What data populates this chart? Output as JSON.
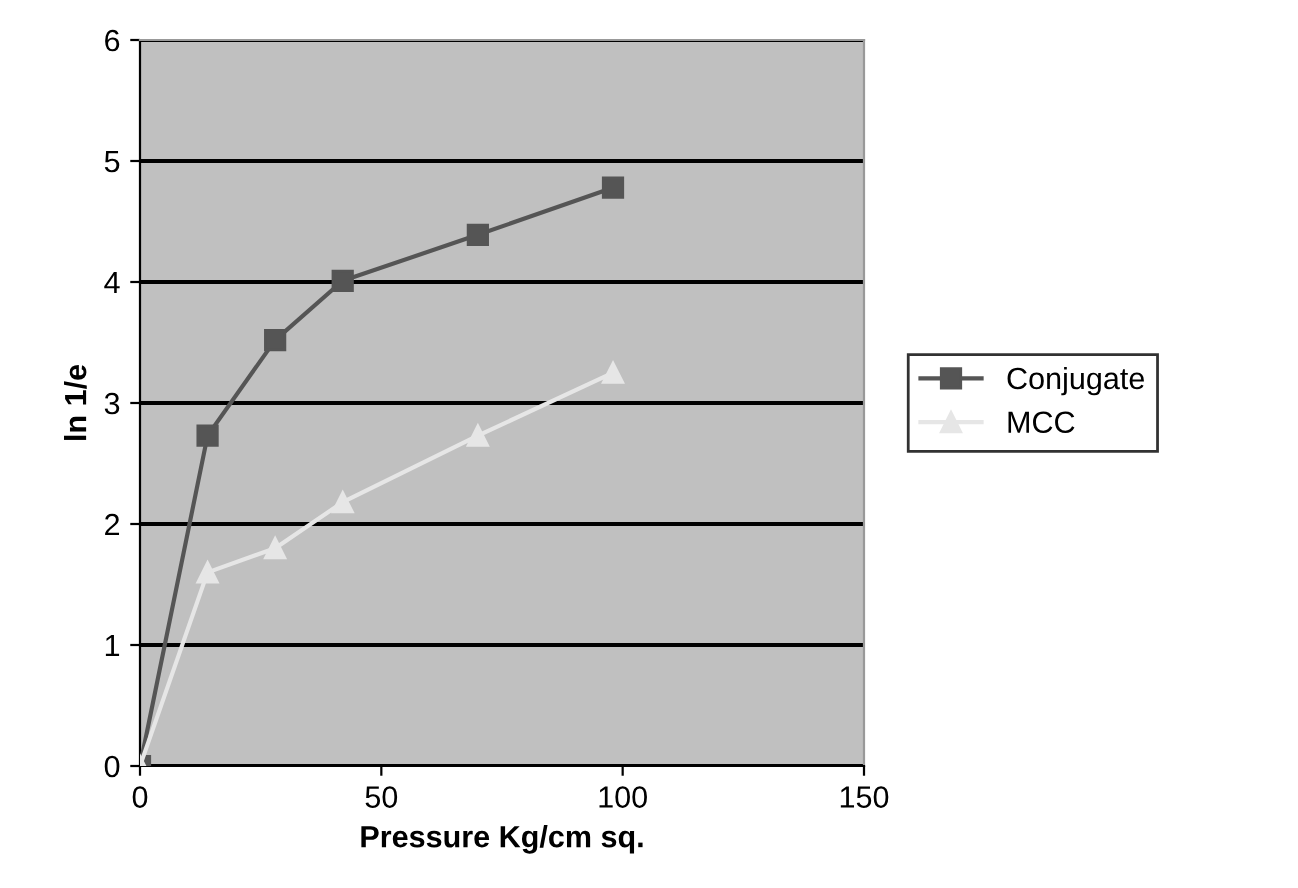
{
  "chart_data": {
    "type": "line",
    "xlabel": "Pressure Kg/cm sq.",
    "ylabel": "ln 1/e",
    "x": [
      0,
      14,
      28,
      42,
      70,
      98
    ],
    "series": [
      {
        "name": "Conjugate",
        "color": "#555555",
        "values": [
          0,
          2.73,
          3.52,
          4.01,
          4.39,
          4.78
        ],
        "marker": "square"
      },
      {
        "name": "MCC",
        "color": "#e6e6e6",
        "values": [
          0,
          1.6,
          1.8,
          2.18,
          2.73,
          3.25
        ],
        "marker": "triangle"
      }
    ],
    "xlim": [
      0,
      150
    ],
    "xticks": [
      0,
      50,
      100,
      150
    ],
    "ylim": [
      0,
      6
    ],
    "yticks": [
      0,
      1,
      2,
      3,
      4,
      5,
      6
    ],
    "grid": "y",
    "legend": "right"
  }
}
